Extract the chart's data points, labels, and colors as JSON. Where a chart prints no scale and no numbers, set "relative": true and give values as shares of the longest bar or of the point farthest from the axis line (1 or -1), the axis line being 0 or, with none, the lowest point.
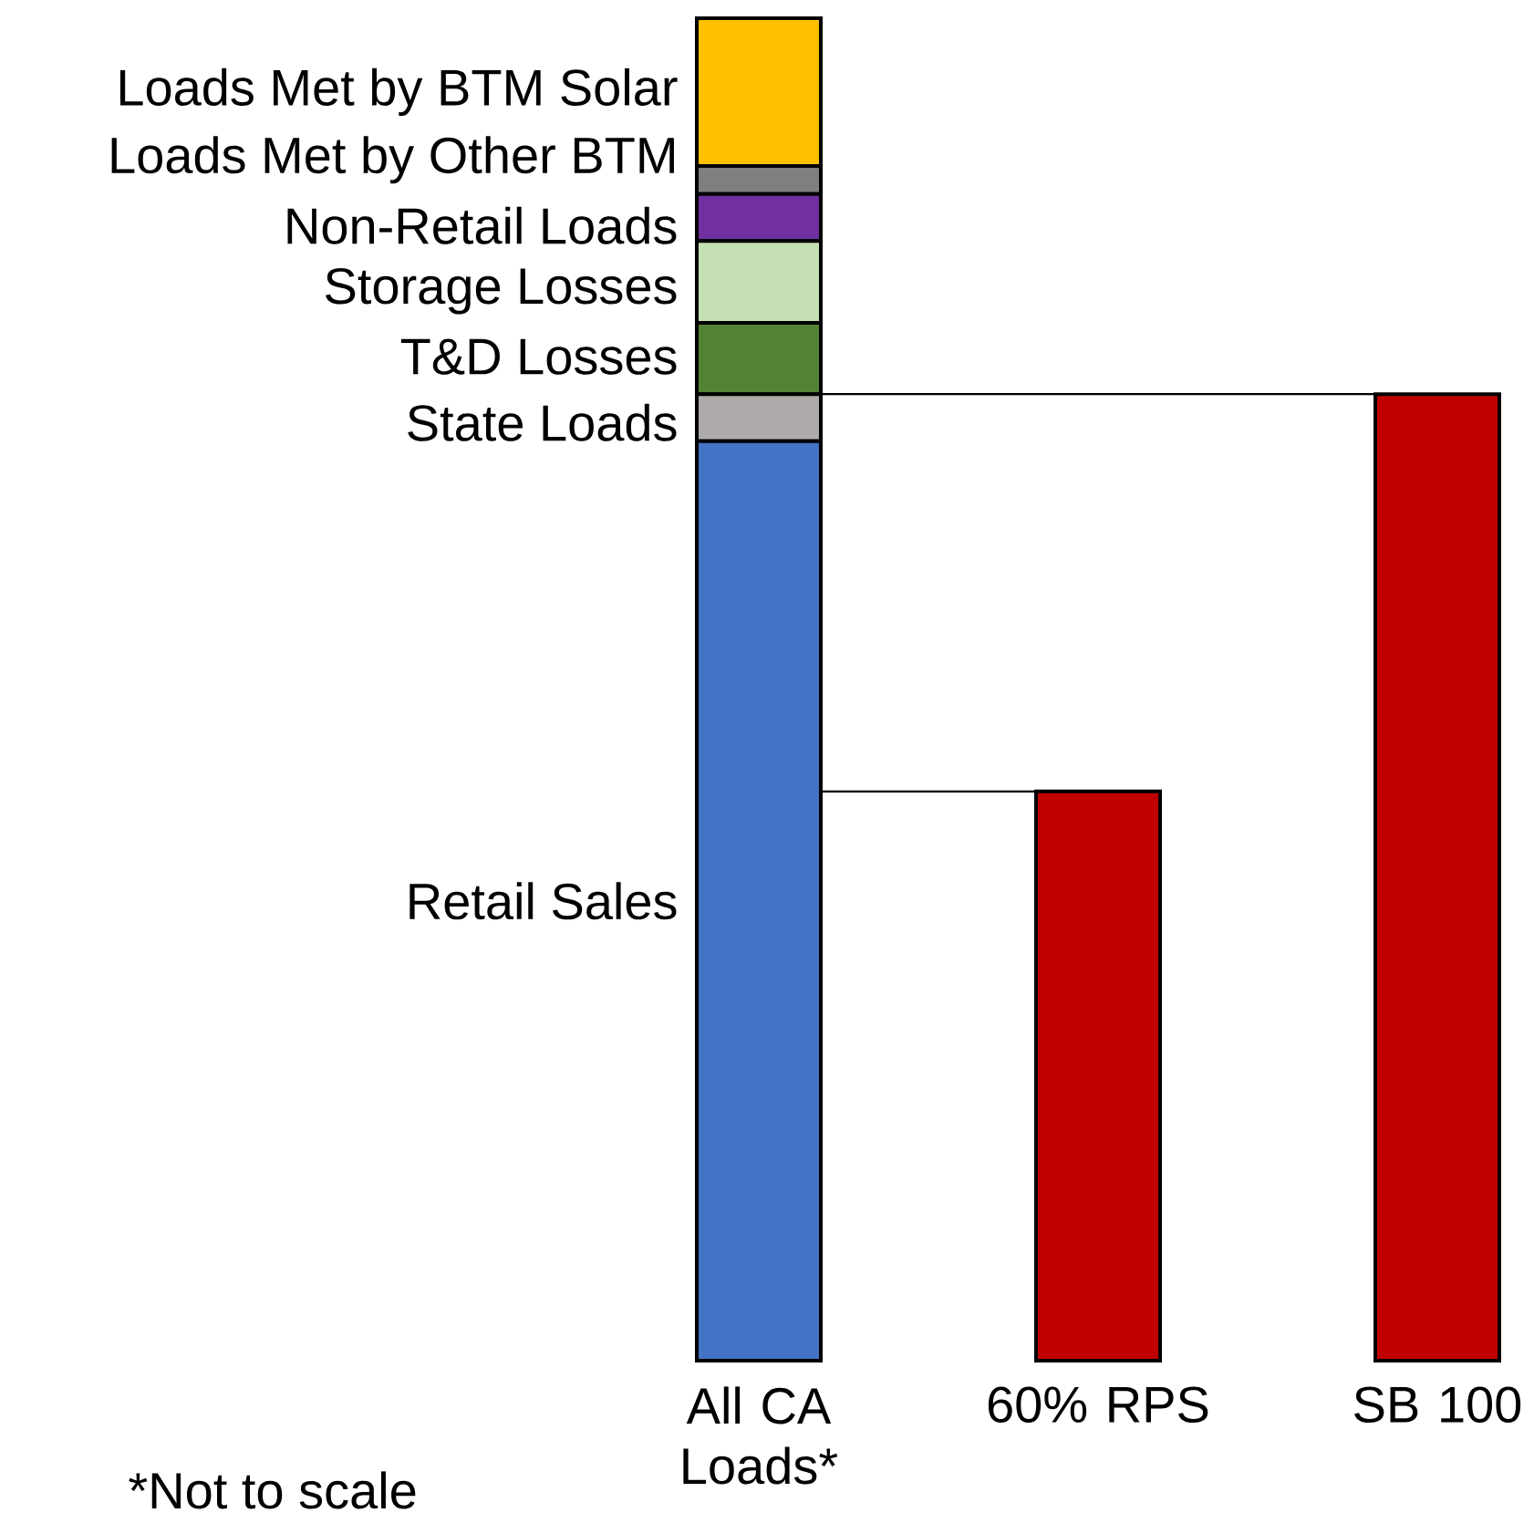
{
  "chart_data": {
    "type": "bar",
    "stacked": true,
    "relative": true,
    "categories": [
      "All CA Loads*",
      "60% RPS",
      "SB 100"
    ],
    "series": [
      {
        "name": "Retail Sales",
        "color": "#4472c4",
        "values": [
          0.685,
          null,
          null
        ]
      },
      {
        "name": "State Loads",
        "color": "#aeaaaa",
        "values": [
          0.035,
          null,
          null
        ]
      },
      {
        "name": "T&D Losses",
        "color": "#548235",
        "values": [
          0.053,
          null,
          null
        ]
      },
      {
        "name": "Storage Losses",
        "color": "#c5e0b4",
        "values": [
          0.061,
          null,
          null
        ]
      },
      {
        "name": "Non-Retail Loads",
        "color": "#7030a0",
        "values": [
          0.035,
          null,
          null
        ]
      },
      {
        "name": "Loads Met by Other BTM",
        "color": "#7f7f7f",
        "values": [
          0.021,
          null,
          null
        ]
      },
      {
        "name": "Loads Met by BTM Solar",
        "color": "#ffc000",
        "values": [
          0.11,
          null,
          null
        ]
      },
      {
        "color": "#c00000",
        "values": [
          null,
          0.424,
          0.72
        ]
      }
    ],
    "ref_lines": [
      {
        "axis": "y",
        "value": 0.72,
        "color": "#000000"
      },
      {
        "axis": "y",
        "value": 0.424,
        "color": "#000000"
      }
    ],
    "annotations": [
      "*Not to scale"
    ]
  }
}
